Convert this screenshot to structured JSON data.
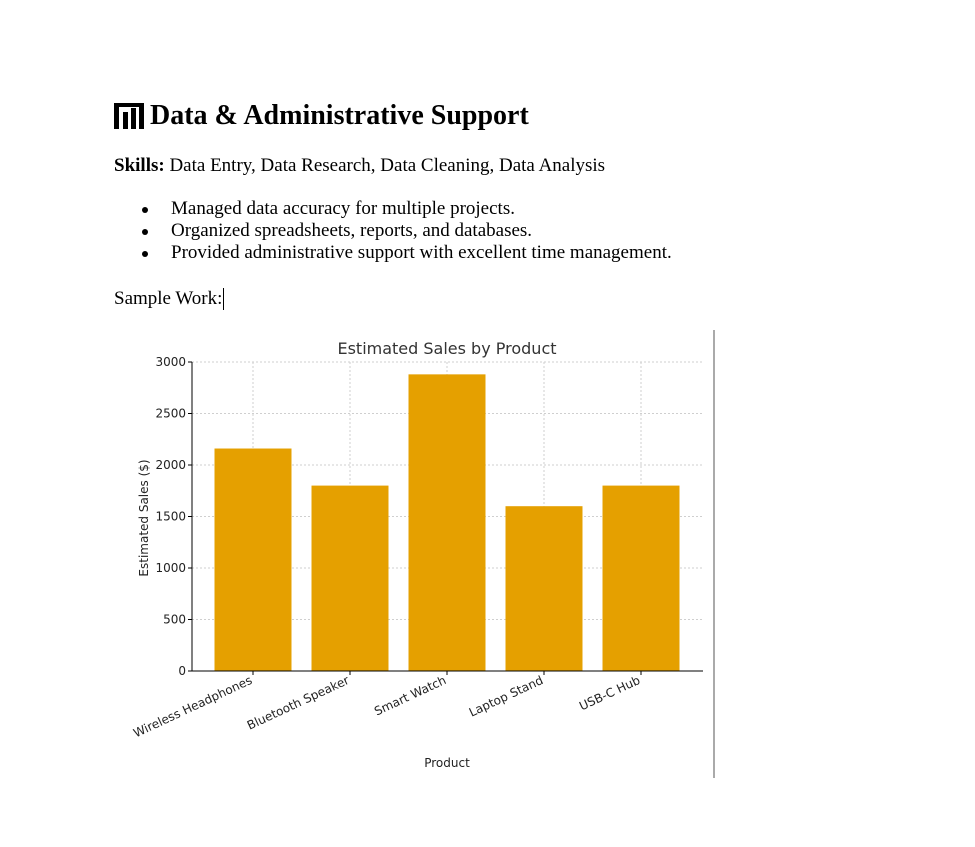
{
  "section": {
    "heading_icon": "bar-chart-icon",
    "heading": "Data & Administrative Support",
    "skills_label": "Skills:",
    "skills_text": " Data Entry, Data Research, Data Cleaning, Data Analysis",
    "bullets": [
      "Managed data accuracy for multiple projects.",
      "Organized spreadsheets, reports, and databases.",
      "Provided administrative support with excellent time management."
    ],
    "sample_label": "Sample Work:"
  },
  "colors": {
    "bar": "#E5A000",
    "text": "#000000"
  },
  "chart_data": {
    "type": "bar",
    "title": "Estimated Sales by Product",
    "xlabel": "Product",
    "ylabel": "Estimated Sales ($)",
    "categories": [
      "Wireless Headphones",
      "Bluetooth Speaker",
      "Smart Watch",
      "Laptop Stand",
      "USB-C Hub"
    ],
    "values": [
      2160,
      1800,
      2880,
      1600,
      1800
    ],
    "ylim": [
      0,
      3000
    ],
    "yticks": [
      0,
      500,
      1000,
      1500,
      2000,
      2500,
      3000
    ],
    "grid": true,
    "legend": "none"
  }
}
